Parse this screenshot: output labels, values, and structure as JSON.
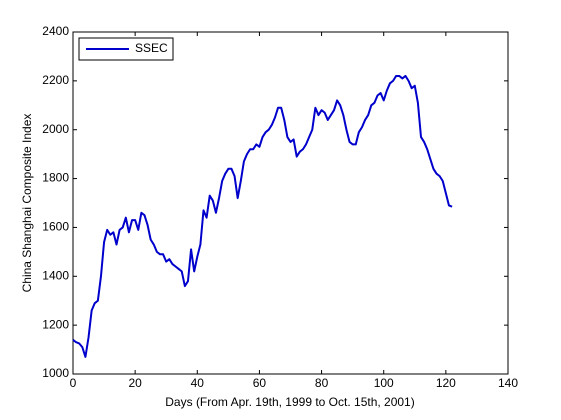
{
  "chart_data": {
    "type": "line",
    "xlabel": "Days (From Apr. 19th, 1999 to Oct. 15th, 2001)",
    "ylabel": "China Shanghai Composite Index",
    "x": [
      0,
      1,
      2,
      3,
      4,
      5,
      6,
      7,
      8,
      9,
      10,
      11,
      12,
      13,
      14,
      15,
      16,
      17,
      18,
      19,
      20,
      21,
      22,
      23,
      24,
      25,
      26,
      27,
      28,
      29,
      30,
      31,
      32,
      33,
      34,
      35,
      36,
      37,
      38,
      39,
      40,
      41,
      42,
      43,
      44,
      45,
      46,
      47,
      48,
      49,
      50,
      51,
      52,
      53,
      54,
      55,
      56,
      57,
      58,
      59,
      60,
      61,
      62,
      63,
      64,
      65,
      66,
      67,
      68,
      69,
      70,
      71,
      72,
      73,
      74,
      75,
      76,
      77,
      78,
      79,
      80,
      81,
      82,
      83,
      84,
      85,
      86,
      87,
      88,
      89,
      90,
      91,
      92,
      93,
      94,
      95,
      96,
      97,
      98,
      99,
      100,
      101,
      102,
      103,
      104,
      105,
      106,
      107,
      108,
      109,
      110,
      111,
      112,
      113,
      114,
      115,
      116,
      117,
      118,
      119,
      120,
      121,
      122
    ],
    "series": [
      {
        "name": "SSEC",
        "color": "#0000cc",
        "values": [
          1140,
          1130,
          1125,
          1110,
          1070,
          1150,
          1260,
          1290,
          1300,
          1400,
          1540,
          1590,
          1570,
          1580,
          1530,
          1590,
          1600,
          1640,
          1580,
          1630,
          1630,
          1590,
          1660,
          1650,
          1610,
          1550,
          1530,
          1500,
          1490,
          1490,
          1460,
          1470,
          1450,
          1440,
          1430,
          1420,
          1360,
          1380,
          1510,
          1420,
          1480,
          1530,
          1670,
          1640,
          1730,
          1710,
          1660,
          1720,
          1790,
          1820,
          1840,
          1840,
          1810,
          1720,
          1790,
          1870,
          1900,
          1920,
          1920,
          1940,
          1930,
          1970,
          1990,
          2000,
          2020,
          2050,
          2090,
          2090,
          2040,
          1970,
          1950,
          1960,
          1890,
          1910,
          1920,
          1940,
          1970,
          2000,
          2090,
          2060,
          2080,
          2070,
          2040,
          2060,
          2080,
          2120,
          2100,
          2060,
          2000,
          1950,
          1940,
          1940,
          1990,
          2010,
          2040,
          2060,
          2100,
          2110,
          2140,
          2150,
          2120,
          2160,
          2190,
          2200,
          2220,
          2220,
          2210,
          2220,
          2200,
          2170,
          2180,
          2110,
          1970,
          1950,
          1920,
          1880,
          1840,
          1820,
          1810,
          1790,
          1740,
          1690,
          1685
        ]
      }
    ],
    "xlim": [
      0,
      140
    ],
    "xticks": [
      0,
      20,
      40,
      60,
      80,
      100,
      120,
      140
    ],
    "ylim": [
      1000,
      2400
    ],
    "yticks": [
      1000,
      1200,
      1400,
      1600,
      1800,
      2000,
      2200,
      2400
    ],
    "legend": "northwest",
    "grid": false
  }
}
